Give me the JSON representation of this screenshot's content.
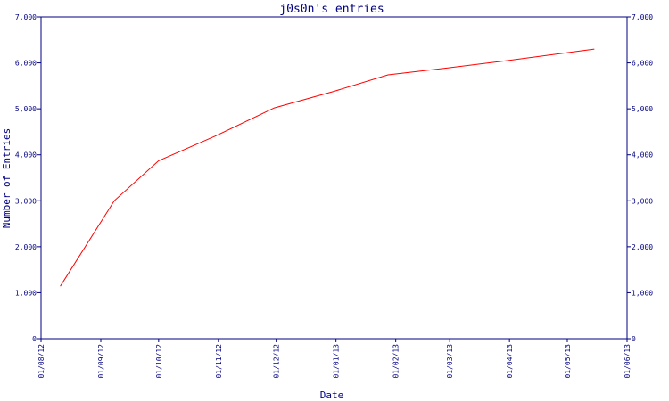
{
  "chart_data": {
    "type": "line",
    "title": "j0s0n's entries",
    "xlabel": "Date",
    "ylabel": "Number of Entries",
    "x_ticks": [
      "01/08/12",
      "01/09/12",
      "01/10/12",
      "01/11/12",
      "01/12/12",
      "01/01/13",
      "01/02/13",
      "01/03/13",
      "01/04/13",
      "01/05/13",
      "01/06/13"
    ],
    "xlim": [
      "2012-08-01",
      "2013-06-01"
    ],
    "y_ticks": [
      "0",
      "1,000",
      "2,000",
      "3,000",
      "4,000",
      "5,000",
      "6,000",
      "7,000"
    ],
    "ylim": [
      0,
      7000
    ],
    "grid": false,
    "series": [
      {
        "color": "#ff0000",
        "points": [
          {
            "x": "2012-08-11",
            "y": 1140
          },
          {
            "x": "2012-09-08",
            "y": 3000
          },
          {
            "x": "2012-10-01",
            "y": 3870
          },
          {
            "x": "2012-10-30",
            "y": 4400
          },
          {
            "x": "2012-11-30",
            "y": 5020
          },
          {
            "x": "2012-12-31",
            "y": 5380
          },
          {
            "x": "2013-01-28",
            "y": 5740
          },
          {
            "x": "2013-02-28",
            "y": 5890
          },
          {
            "x": "2013-03-31",
            "y": 6050
          },
          {
            "x": "2013-05-15",
            "y": 6300
          }
        ]
      }
    ],
    "axis_color": "#000080"
  }
}
